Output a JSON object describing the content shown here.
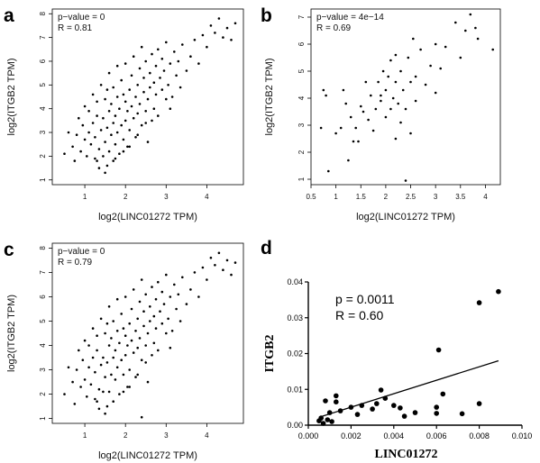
{
  "chart_data": [
    {
      "panel": "a",
      "type": "scatter",
      "title": "",
      "xlabel": "log2(LINC01272 TPM)",
      "ylabel": "log2(ITGB2 TPM)",
      "xticks": [
        1,
        2,
        3,
        4
      ],
      "yticks": [
        1,
        2,
        3,
        4,
        5,
        6,
        7,
        8
      ],
      "xlim": [
        0.2,
        4.9
      ],
      "ylim": [
        0.8,
        8.2
      ],
      "annotations": [
        "p−value = 0",
        "R = 0.81"
      ],
      "points": [
        [
          0.5,
          2.1
        ],
        [
          0.6,
          3.0
        ],
        [
          0.7,
          2.4
        ],
        [
          0.75,
          1.8
        ],
        [
          0.8,
          2.9
        ],
        [
          0.85,
          3.6
        ],
        [
          0.9,
          2.2
        ],
        [
          0.95,
          3.3
        ],
        [
          1.0,
          2.7
        ],
        [
          1.0,
          4.1
        ],
        [
          1.05,
          2.0
        ],
        [
          1.1,
          3.0
        ],
        [
          1.1,
          3.9
        ],
        [
          1.15,
          2.5
        ],
        [
          1.2,
          3.4
        ],
        [
          1.2,
          4.6
        ],
        [
          1.25,
          1.9
        ],
        [
          1.25,
          2.8
        ],
        [
          1.3,
          3.7
        ],
        [
          1.3,
          4.3
        ],
        [
          1.35,
          1.5
        ],
        [
          1.35,
          2.3
        ],
        [
          1.4,
          3.1
        ],
        [
          1.4,
          5.0
        ],
        [
          1.45,
          2.0
        ],
        [
          1.45,
          3.6
        ],
        [
          1.5,
          2.6
        ],
        [
          1.5,
          4.4
        ],
        [
          1.5,
          1.3
        ],
        [
          1.55,
          3.2
        ],
        [
          1.55,
          4.8
        ],
        [
          1.6,
          2.2
        ],
        [
          1.6,
          3.9
        ],
        [
          1.6,
          5.5
        ],
        [
          1.65,
          2.9
        ],
        [
          1.65,
          4.2
        ],
        [
          1.7,
          1.8
        ],
        [
          1.7,
          3.4
        ],
        [
          1.7,
          4.9
        ],
        [
          1.75,
          2.5
        ],
        [
          1.75,
          3.7
        ],
        [
          1.8,
          4.5
        ],
        [
          1.8,
          3.0
        ],
        [
          1.8,
          5.8
        ],
        [
          1.85,
          2.1
        ],
        [
          1.85,
          4.0
        ],
        [
          1.9,
          3.3
        ],
        [
          1.9,
          5.2
        ],
        [
          1.95,
          2.7
        ],
        [
          1.95,
          4.6
        ],
        [
          2.0,
          3.5
        ],
        [
          2.0,
          4.3
        ],
        [
          2.0,
          5.9
        ],
        [
          2.05,
          2.4
        ],
        [
          2.05,
          3.9
        ],
        [
          2.1,
          4.8
        ],
        [
          2.1,
          3.1
        ],
        [
          2.15,
          5.4
        ],
        [
          2.15,
          4.1
        ],
        [
          2.2,
          3.6
        ],
        [
          2.2,
          6.2
        ],
        [
          2.25,
          2.8
        ],
        [
          2.25,
          4.5
        ],
        [
          2.3,
          5.0
        ],
        [
          2.3,
          3.8
        ],
        [
          2.35,
          4.2
        ],
        [
          2.35,
          5.7
        ],
        [
          2.4,
          3.3
        ],
        [
          2.4,
          6.6
        ],
        [
          2.45,
          4.7
        ],
        [
          2.45,
          5.3
        ],
        [
          2.5,
          3.9
        ],
        [
          2.5,
          6.0
        ],
        [
          2.55,
          4.4
        ],
        [
          2.55,
          2.6
        ],
        [
          2.6,
          5.5
        ],
        [
          2.6,
          4.9
        ],
        [
          2.65,
          3.5
        ],
        [
          2.65,
          6.3
        ],
        [
          2.7,
          5.1
        ],
        [
          2.7,
          4.0
        ],
        [
          2.75,
          5.8
        ],
        [
          2.75,
          4.6
        ],
        [
          2.8,
          6.5
        ],
        [
          2.8,
          3.7
        ],
        [
          2.85,
          5.3
        ],
        [
          2.9,
          4.8
        ],
        [
          2.9,
          6.1
        ],
        [
          2.95,
          5.6
        ],
        [
          3.0,
          4.4
        ],
        [
          3.0,
          6.8
        ],
        [
          3.05,
          5.0
        ],
        [
          3.1,
          5.9
        ],
        [
          3.15,
          4.5
        ],
        [
          3.2,
          6.4
        ],
        [
          3.25,
          5.4
        ],
        [
          3.3,
          6.0
        ],
        [
          3.35,
          4.9
        ],
        [
          3.4,
          6.7
        ],
        [
          3.5,
          5.6
        ],
        [
          3.6,
          6.2
        ],
        [
          3.7,
          6.9
        ],
        [
          3.8,
          5.9
        ],
        [
          3.9,
          7.1
        ],
        [
          4.0,
          6.6
        ],
        [
          4.1,
          7.5
        ],
        [
          4.2,
          7.2
        ],
        [
          4.3,
          7.8
        ],
        [
          4.4,
          7.0
        ],
        [
          4.5,
          7.4
        ],
        [
          4.6,
          6.9
        ],
        [
          4.7,
          7.6
        ],
        [
          1.3,
          1.8
        ],
        [
          1.55,
          1.6
        ],
        [
          2.1,
          2.4
        ],
        [
          2.3,
          2.9
        ],
        [
          2.5,
          3.4
        ],
        [
          3.1,
          4.0
        ],
        [
          1.75,
          1.9
        ],
        [
          1.95,
          2.2
        ]
      ]
    },
    {
      "panel": "b",
      "type": "scatter",
      "title": "",
      "xlabel": "log2(LINC01272 TPM)",
      "ylabel": "log2(ITGB2 TPM)",
      "xticks": [
        0.5,
        1.0,
        1.5,
        2.0,
        2.5,
        3.0,
        3.5,
        4.0
      ],
      "yticks": [
        1,
        2,
        3,
        4,
        5,
        6,
        7
      ],
      "xlim": [
        0.5,
        4.3
      ],
      "ylim": [
        0.8,
        7.3
      ],
      "annotations": [
        "p−value = 4e−14",
        "R = 0.69"
      ],
      "points": [
        [
          0.7,
          2.9
        ],
        [
          0.75,
          4.3
        ],
        [
          0.8,
          4.1
        ],
        [
          0.85,
          1.3
        ],
        [
          1.0,
          2.7
        ],
        [
          1.1,
          2.9
        ],
        [
          1.15,
          4.3
        ],
        [
          1.2,
          3.8
        ],
        [
          1.25,
          1.7
        ],
        [
          1.3,
          3.3
        ],
        [
          1.35,
          2.4
        ],
        [
          1.4,
          2.9
        ],
        [
          1.45,
          2.4
        ],
        [
          1.5,
          3.7
        ],
        [
          1.55,
          3.5
        ],
        [
          1.6,
          4.6
        ],
        [
          1.65,
          3.2
        ],
        [
          1.7,
          4.1
        ],
        [
          1.75,
          2.8
        ],
        [
          1.8,
          3.6
        ],
        [
          1.85,
          4.6
        ],
        [
          1.9,
          3.9
        ],
        [
          1.95,
          5.0
        ],
        [
          2.0,
          4.3
        ],
        [
          2.0,
          3.3
        ],
        [
          2.05,
          4.8
        ],
        [
          2.1,
          3.6
        ],
        [
          2.1,
          5.4
        ],
        [
          2.15,
          4.0
        ],
        [
          2.2,
          2.5
        ],
        [
          2.2,
          4.6
        ],
        [
          2.25,
          3.8
        ],
        [
          2.3,
          5.0
        ],
        [
          2.3,
          3.1
        ],
        [
          2.35,
          4.3
        ],
        [
          2.4,
          3.6
        ],
        [
          2.45,
          5.5
        ],
        [
          2.5,
          4.6
        ],
        [
          2.5,
          2.7
        ],
        [
          2.55,
          6.2
        ],
        [
          2.6,
          3.9
        ],
        [
          2.6,
          4.8
        ],
        [
          2.7,
          5.8
        ],
        [
          2.8,
          4.5
        ],
        [
          2.9,
          5.2
        ],
        [
          3.0,
          6.0
        ],
        [
          3.1,
          5.1
        ],
        [
          3.2,
          5.9
        ],
        [
          3.4,
          6.8
        ],
        [
          3.5,
          5.5
        ],
        [
          3.6,
          6.5
        ],
        [
          3.7,
          7.1
        ],
        [
          3.8,
          6.6
        ],
        [
          3.85,
          6.2
        ],
        [
          4.15,
          5.8
        ],
        [
          2.4,
          0.95
        ],
        [
          3.0,
          4.2
        ],
        [
          1.9,
          4.1
        ],
        [
          2.2,
          5.6
        ]
      ]
    },
    {
      "panel": "c",
      "type": "scatter",
      "title": "",
      "xlabel": "log2(LINC01272 TPM)",
      "ylabel": "log2(ITGB2 TPM)",
      "xticks": [
        1,
        2,
        3,
        4
      ],
      "yticks": [
        1,
        2,
        3,
        4,
        5,
        6,
        7,
        8
      ],
      "xlim": [
        0.2,
        4.9
      ],
      "ylim": [
        0.8,
        8.2
      ],
      "annotations": [
        "p−value = 0",
        "R = 0.79"
      ],
      "points": [
        [
          0.5,
          2.0
        ],
        [
          0.6,
          3.1
        ],
        [
          0.7,
          2.5
        ],
        [
          0.75,
          1.6
        ],
        [
          0.8,
          3.0
        ],
        [
          0.85,
          3.8
        ],
        [
          0.9,
          2.3
        ],
        [
          0.95,
          3.4
        ],
        [
          1.0,
          2.6
        ],
        [
          1.0,
          4.2
        ],
        [
          1.05,
          1.9
        ],
        [
          1.1,
          3.1
        ],
        [
          1.1,
          4.0
        ],
        [
          1.15,
          2.4
        ],
        [
          1.2,
          3.5
        ],
        [
          1.2,
          4.7
        ],
        [
          1.25,
          1.8
        ],
        [
          1.25,
          2.9
        ],
        [
          1.3,
          3.8
        ],
        [
          1.3,
          4.4
        ],
        [
          1.35,
          1.4
        ],
        [
          1.35,
          2.2
        ],
        [
          1.4,
          3.2
        ],
        [
          1.4,
          5.1
        ],
        [
          1.45,
          2.1
        ],
        [
          1.45,
          3.5
        ],
        [
          1.5,
          2.7
        ],
        [
          1.5,
          4.5
        ],
        [
          1.5,
          1.2
        ],
        [
          1.55,
          3.3
        ],
        [
          1.55,
          4.9
        ],
        [
          1.6,
          2.1
        ],
        [
          1.6,
          4.0
        ],
        [
          1.6,
          5.6
        ],
        [
          1.65,
          2.8
        ],
        [
          1.65,
          4.3
        ],
        [
          1.7,
          1.7
        ],
        [
          1.7,
          3.5
        ],
        [
          1.7,
          5.0
        ],
        [
          1.75,
          2.6
        ],
        [
          1.75,
          3.8
        ],
        [
          1.8,
          4.6
        ],
        [
          1.8,
          3.1
        ],
        [
          1.8,
          5.9
        ],
        [
          1.85,
          2.0
        ],
        [
          1.85,
          4.1
        ],
        [
          1.9,
          3.4
        ],
        [
          1.9,
          5.3
        ],
        [
          1.95,
          2.8
        ],
        [
          1.95,
          4.7
        ],
        [
          2.0,
          3.6
        ],
        [
          2.0,
          4.4
        ],
        [
          2.0,
          6.0
        ],
        [
          2.05,
          2.3
        ],
        [
          2.05,
          4.0
        ],
        [
          2.1,
          4.9
        ],
        [
          2.1,
          3.0
        ],
        [
          2.15,
          5.5
        ],
        [
          2.15,
          4.2
        ],
        [
          2.2,
          3.7
        ],
        [
          2.2,
          6.3
        ],
        [
          2.25,
          2.7
        ],
        [
          2.25,
          4.6
        ],
        [
          2.3,
          5.1
        ],
        [
          2.3,
          3.9
        ],
        [
          2.35,
          4.3
        ],
        [
          2.35,
          5.8
        ],
        [
          2.4,
          3.4
        ],
        [
          2.4,
          6.7
        ],
        [
          2.45,
          4.8
        ],
        [
          2.45,
          5.4
        ],
        [
          2.5,
          4.0
        ],
        [
          2.5,
          6.1
        ],
        [
          2.55,
          4.5
        ],
        [
          2.55,
          2.5
        ],
        [
          2.6,
          5.6
        ],
        [
          2.6,
          5.0
        ],
        [
          2.65,
          3.6
        ],
        [
          2.65,
          6.4
        ],
        [
          2.7,
          5.2
        ],
        [
          2.7,
          4.1
        ],
        [
          2.75,
          5.9
        ],
        [
          2.75,
          4.7
        ],
        [
          2.8,
          6.6
        ],
        [
          2.8,
          3.8
        ],
        [
          2.85,
          5.4
        ],
        [
          2.9,
          4.9
        ],
        [
          2.9,
          6.2
        ],
        [
          2.95,
          5.7
        ],
        [
          3.0,
          4.5
        ],
        [
          3.0,
          6.9
        ],
        [
          3.05,
          5.1
        ],
        [
          3.1,
          6.0
        ],
        [
          3.15,
          4.6
        ],
        [
          3.2,
          6.5
        ],
        [
          3.25,
          5.5
        ],
        [
          3.3,
          6.1
        ],
        [
          3.35,
          5.0
        ],
        [
          3.4,
          6.8
        ],
        [
          3.5,
          5.7
        ],
        [
          3.6,
          6.3
        ],
        [
          3.7,
          7.0
        ],
        [
          3.8,
          6.0
        ],
        [
          3.9,
          7.2
        ],
        [
          4.0,
          6.7
        ],
        [
          4.1,
          7.6
        ],
        [
          4.2,
          7.3
        ],
        [
          4.3,
          7.8
        ],
        [
          4.4,
          7.1
        ],
        [
          4.5,
          7.5
        ],
        [
          4.6,
          6.9
        ],
        [
          4.7,
          7.4
        ],
        [
          2.4,
          1.05
        ],
        [
          1.3,
          1.7
        ],
        [
          1.55,
          1.5
        ],
        [
          2.1,
          2.3
        ],
        [
          2.3,
          2.8
        ],
        [
          2.5,
          3.3
        ],
        [
          3.1,
          3.9
        ],
        [
          1.95,
          2.1
        ]
      ]
    },
    {
      "panel": "d",
      "type": "scatter",
      "title": "",
      "xlabel": "LINC01272",
      "ylabel": "ITGB2",
      "xticks": [
        "0.000",
        "0.002",
        "0.004",
        "0.006",
        "0.008",
        "0.010"
      ],
      "yticks": [
        "0.00",
        "0.01",
        "0.02",
        "0.03",
        "0.04"
      ],
      "xlim": [
        0,
        0.01
      ],
      "ylim": [
        0,
        0.04
      ],
      "annotations": [
        "p = 0.0011",
        "R = 0.60"
      ],
      "trendline": [
        [
          0.0005,
          0.0022
        ],
        [
          0.0089,
          0.018
        ]
      ],
      "points": [
        [
          0.0005,
          0.0012
        ],
        [
          0.0006,
          0.002
        ],
        [
          0.0007,
          0.0005
        ],
        [
          0.0008,
          0.0068
        ],
        [
          0.0009,
          0.0015
        ],
        [
          0.001,
          0.0035
        ],
        [
          0.0011,
          0.001
        ],
        [
          0.0013,
          0.0082
        ],
        [
          0.0013,
          0.0065
        ],
        [
          0.0015,
          0.004
        ],
        [
          0.002,
          0.005
        ],
        [
          0.0023,
          0.003
        ],
        [
          0.0025,
          0.0055
        ],
        [
          0.003,
          0.0045
        ],
        [
          0.0032,
          0.006
        ],
        [
          0.0034,
          0.0098
        ],
        [
          0.0036,
          0.0075
        ],
        [
          0.004,
          0.0055
        ],
        [
          0.0043,
          0.0048
        ],
        [
          0.0045,
          0.0025
        ],
        [
          0.005,
          0.0035
        ],
        [
          0.006,
          0.005
        ],
        [
          0.006,
          0.0033
        ],
        [
          0.0061,
          0.021
        ],
        [
          0.0063,
          0.0087
        ],
        [
          0.0072,
          0.0032
        ],
        [
          0.008,
          0.006
        ],
        [
          0.008,
          0.0342
        ],
        [
          0.0089,
          0.0373
        ]
      ]
    }
  ]
}
